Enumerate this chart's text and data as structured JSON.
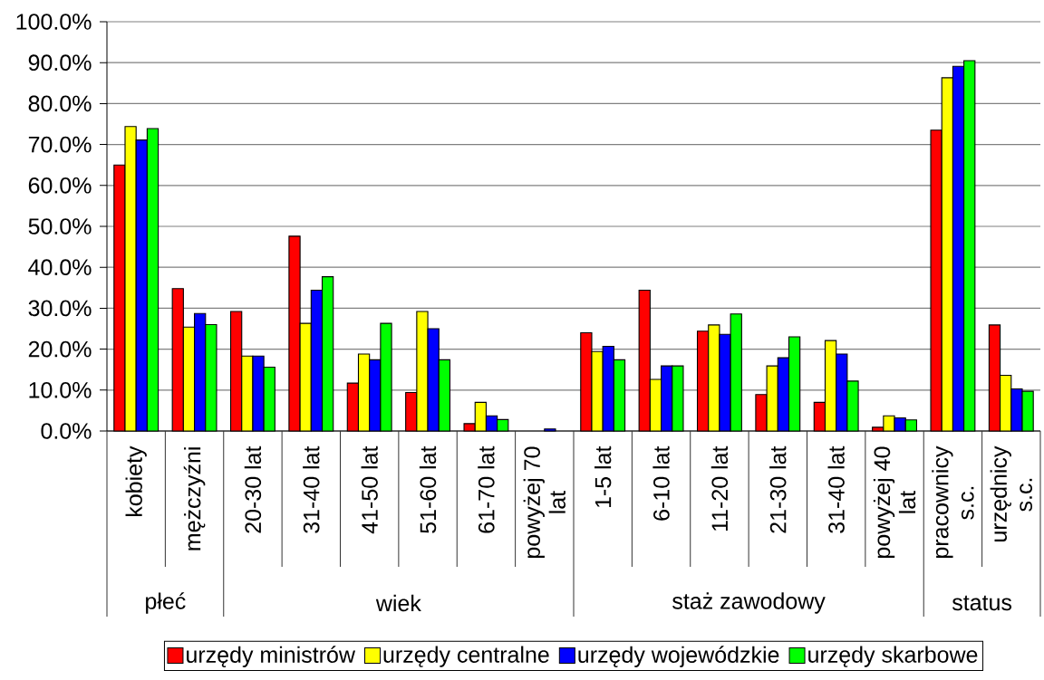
{
  "chart_data": {
    "type": "bar",
    "categories": [
      "kobiety",
      "mężczyźni",
      "20-30 lat",
      "31-40 lat",
      "41-50 lat",
      "51-60 lat",
      "61-70 lat",
      "powyżej 70 lat",
      "1-5 lat",
      "6-10 lat",
      "11-20 lat",
      "21-30 lat",
      "31-40 lat",
      "powyżej 40 lat",
      "pracownicy s.c.",
      "urzędnicy s.c."
    ],
    "series": [
      {
        "name": "urzędy ministrów",
        "color": "#ff0000",
        "values": [
          65.0,
          34.8,
          29.2,
          47.6,
          11.7,
          9.4,
          1.8,
          null,
          24.0,
          34.4,
          24.4,
          8.9,
          7.0,
          0.9,
          73.5,
          25.9
        ]
      },
      {
        "name": "urzędy centralne",
        "color": "#ffff00",
        "values": [
          74.4,
          25.4,
          18.3,
          26.3,
          18.8,
          29.2,
          7.0,
          null,
          19.4,
          12.6,
          25.9,
          15.9,
          22.1,
          3.7,
          86.3,
          13.6
        ]
      },
      {
        "name": "urzędy wojewódzkie",
        "color": "#0000ff",
        "values": [
          71.1,
          28.7,
          18.3,
          34.4,
          17.4,
          25.0,
          3.7,
          0.5,
          20.7,
          15.9,
          23.6,
          17.9,
          18.8,
          3.2,
          89.1,
          10.3
        ]
      },
      {
        "name": "urzędy skarbowe",
        "color": "#00ff00",
        "values": [
          73.9,
          26.0,
          15.6,
          37.7,
          26.3,
          17.4,
          2.8,
          null,
          17.4,
          15.9,
          28.6,
          23.0,
          12.2,
          2.7,
          90.5,
          9.7
        ]
      }
    ],
    "annotations": [
      "płeć",
      "wiek",
      "staż zawodowy",
      "status"
    ],
    "ylim": [
      0,
      100
    ],
    "yticks": [
      {
        "value": 0,
        "label": "0.0%"
      },
      {
        "value": 10,
        "label": "10.0%"
      },
      {
        "value": 20,
        "label": "20.0%"
      },
      {
        "value": 30,
        "label": "30.0%"
      },
      {
        "value": 40,
        "label": "40.0%"
      },
      {
        "value": 50,
        "label": "50.0%"
      },
      {
        "value": 60,
        "label": "60.0%"
      },
      {
        "value": 70,
        "label": "70.0%"
      },
      {
        "value": 80,
        "label": "80.0%"
      },
      {
        "value": 90,
        "label": "90.0%"
      },
      {
        "value": 100,
        "label": "100.0%"
      }
    ],
    "grid": "y",
    "legend": "bottom"
  }
}
